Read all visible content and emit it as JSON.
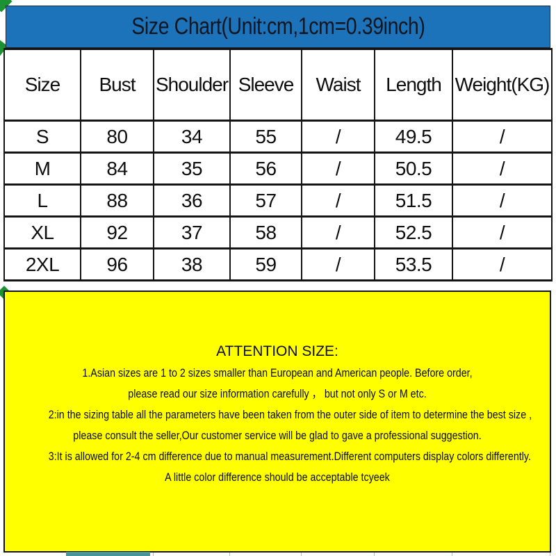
{
  "title": "Size Chart(Unit:cm,1cm=0.39inch)",
  "colors": {
    "banner_bg": "#1d73b9",
    "attention_bg": "#ffff00",
    "border": "#141414",
    "artifact_green": "#1c9232",
    "artifact_teal": "#4a949b"
  },
  "table": {
    "columns": [
      "Size",
      "Bust",
      "Shoulder",
      "Sleeve",
      "Waist",
      "Length",
      "Weight(KG)"
    ],
    "rows": [
      [
        "S",
        "80",
        "34",
        "55",
        "/",
        "49.5",
        "/"
      ],
      [
        "M",
        "84",
        "35",
        "56",
        "/",
        "50.5",
        "/"
      ],
      [
        "L",
        "88",
        "36",
        "57",
        "/",
        "51.5",
        "/"
      ],
      [
        "XL",
        "92",
        "37",
        "58",
        "/",
        "52.5",
        "/"
      ],
      [
        "2XL",
        "96",
        "38",
        "59",
        "/",
        "53.5",
        "/"
      ]
    ]
  },
  "attention": {
    "heading": "ATTENTION SIZE:",
    "lines": [
      "1.Asian sizes are 1 to 2 sizes smaller than European and American people. Before order,",
      "please read our size information carefully ，  but not only S or M etc.",
      "2:in the sizing table all the parameters have been taken from the outer side of item to determine the best size ,",
      "please consult the seller,Our customer service will be glad to gave a professional suggestion.",
      "3:It is allowed for 2-4 cm difference due to manual measurement.Different computers display colors differently.",
      "A little color difference should be acceptable tcyeek"
    ]
  }
}
